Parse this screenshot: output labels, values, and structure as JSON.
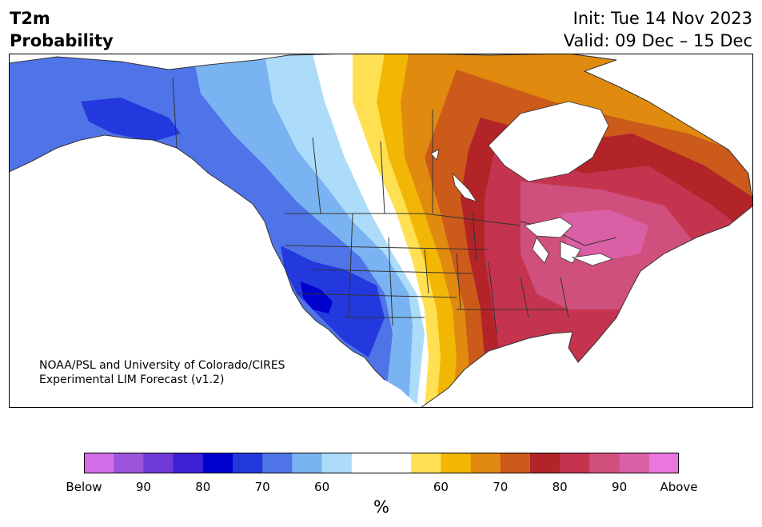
{
  "title": {
    "line1": "T2m",
    "line2": "Probability"
  },
  "info": {
    "init": "Init: Tue 14 Nov 2023",
    "valid": "Valid: 09 Dec – 15 Dec"
  },
  "credit": {
    "line1": "NOAA/PSL and University of Colorado/CIRES",
    "line2": "Experimental LIM Forecast (v1.2)"
  },
  "colorbar": {
    "colors": [
      "#d46ee8",
      "#9b55dc",
      "#6e3ad8",
      "#3f1fd6",
      "#0000cc",
      "#2439dd",
      "#4f74e8",
      "#7ab3f2",
      "#acdcfa",
      "#ffffff",
      "#ffffff",
      "#ffe052",
      "#f2b705",
      "#e08b0f",
      "#cc5a1a",
      "#b32428",
      "#c5344f",
      "#d0507d",
      "#da5fa4",
      "#e977dd"
    ],
    "tick_labels": [
      "Below",
      "90",
      "80",
      "70",
      "60",
      "60",
      "70",
      "80",
      "90",
      "Above"
    ],
    "unit": "%"
  }
}
